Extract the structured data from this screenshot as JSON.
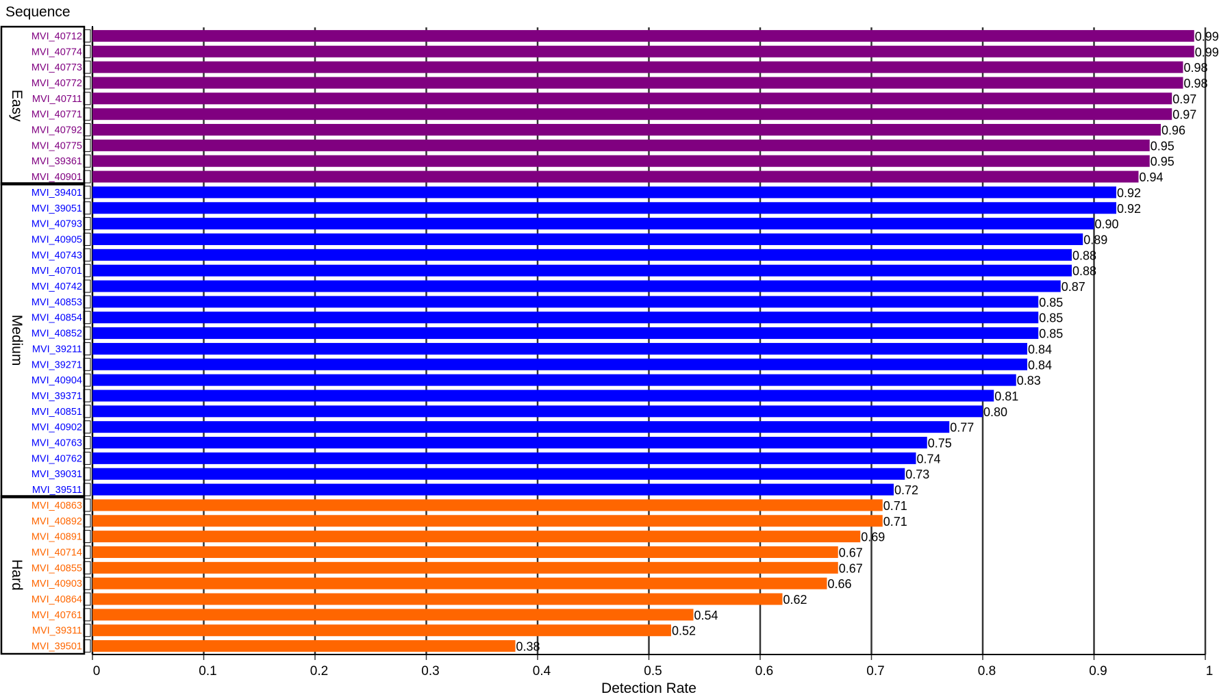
{
  "chart_data": {
    "type": "bar",
    "orientation": "horizontal",
    "title": "",
    "xlabel": "Detection Rate",
    "ylabel": "Sequence",
    "xlim": [
      0,
      1
    ],
    "x_ticks": [
      "0",
      "0.1",
      "0.2",
      "0.3",
      "0.4",
      "0.5",
      "0.6",
      "0.7",
      "0.8",
      "0.9",
      "1"
    ],
    "grid": "vertical",
    "groups": [
      {
        "name": "Easy",
        "color": "#800080",
        "categories": [
          "MVI_40712",
          "MVI_40774",
          "MVI_40773",
          "MVI_40772",
          "MVI_40711",
          "MVI_40771",
          "MVI_40792",
          "MVI_40775",
          "MVI_39361",
          "MVI_40901"
        ],
        "values": [
          0.99,
          0.99,
          0.98,
          0.98,
          0.97,
          0.97,
          0.96,
          0.95,
          0.95,
          0.94
        ],
        "labels": [
          "0.99",
          "0.99",
          "0.98",
          "0.98",
          "0.97",
          "0.97",
          "0.96",
          "0.95",
          "0.95",
          "0.94"
        ]
      },
      {
        "name": "Medium",
        "color": "#0000ff",
        "categories": [
          "MVI_39401",
          "MVI_39051",
          "MVI_40793",
          "MVI_40905",
          "MVI_40743",
          "MVI_40701",
          "MVI_40742",
          "MVI_40853",
          "MVI_40854",
          "MVI_40852",
          "MVI_39211",
          "MVI_39271",
          "MVI_40904",
          "MVI_39371",
          "MVI_40851",
          "MVI_40902",
          "MVI_40763",
          "MVI_40762",
          "MVI_39031",
          "MVI_39511"
        ],
        "values": [
          0.92,
          0.92,
          0.9,
          0.89,
          0.88,
          0.88,
          0.87,
          0.85,
          0.85,
          0.85,
          0.84,
          0.84,
          0.83,
          0.81,
          0.8,
          0.77,
          0.75,
          0.74,
          0.73,
          0.72
        ],
        "labels": [
          "0.92",
          "0.92",
          "0.90",
          "0.89",
          "0.88",
          "0.88",
          "0.87",
          "0.85",
          "0.85",
          "0.85",
          "0.84",
          "0.84",
          "0.83",
          "0.81",
          "0.80",
          "0.77",
          "0.75",
          "0.74",
          "0.73",
          "0.72"
        ]
      },
      {
        "name": "Hard",
        "color": "#ff6600",
        "categories": [
          "MVI_40863",
          "MVI_40892",
          "MVI_40891",
          "MVI_40714",
          "MVI_40855",
          "MVI_40903",
          "MVI_40864",
          "MVI_40761",
          "MVI_39311",
          "MVI_39501"
        ],
        "values": [
          0.71,
          0.71,
          0.69,
          0.67,
          0.67,
          0.66,
          0.62,
          0.54,
          0.52,
          0.38
        ],
        "labels": [
          "0.71",
          "0.71",
          "0.69",
          "0.67",
          "0.67",
          "0.66",
          "0.62",
          "0.54",
          "0.52",
          "0.38"
        ]
      }
    ]
  }
}
